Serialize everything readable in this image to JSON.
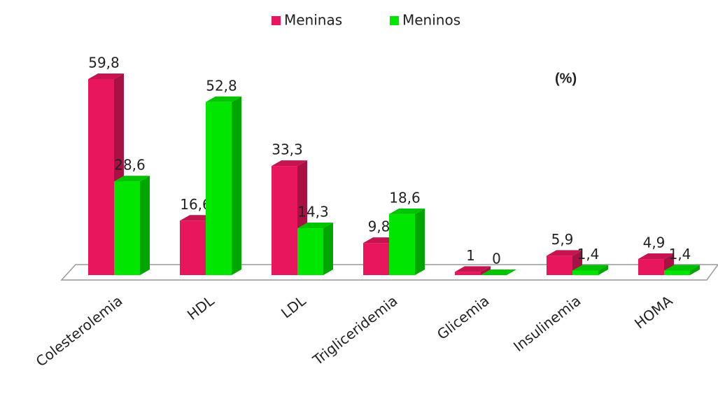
{
  "chart_data": {
    "type": "bar3d",
    "annotation": "(%)",
    "categories": [
      "Colesterolemia",
      "HDL",
      "LDL",
      "Trigliceridemia",
      "Glicemia",
      "Insulinemia",
      "HOMA"
    ],
    "series": [
      {
        "name": "Meninas",
        "color": "#e8175d",
        "values": [
          59.8,
          16.6,
          33.3,
          9.8,
          1,
          5.9,
          4.9
        ],
        "value_labels": [
          "59,8",
          "16,6",
          "33,3",
          "9,8",
          "1",
          "5,9",
          "4,9"
        ]
      },
      {
        "name": "Meninos",
        "color": "#00e600",
        "values": [
          28.6,
          52.8,
          14.3,
          18.6,
          0,
          1.4,
          1.4
        ],
        "value_labels": [
          "28,6",
          "52,8",
          "14,3",
          "18,6",
          "0",
          "1,4",
          "1,4"
        ]
      }
    ],
    "legend": "top"
  }
}
